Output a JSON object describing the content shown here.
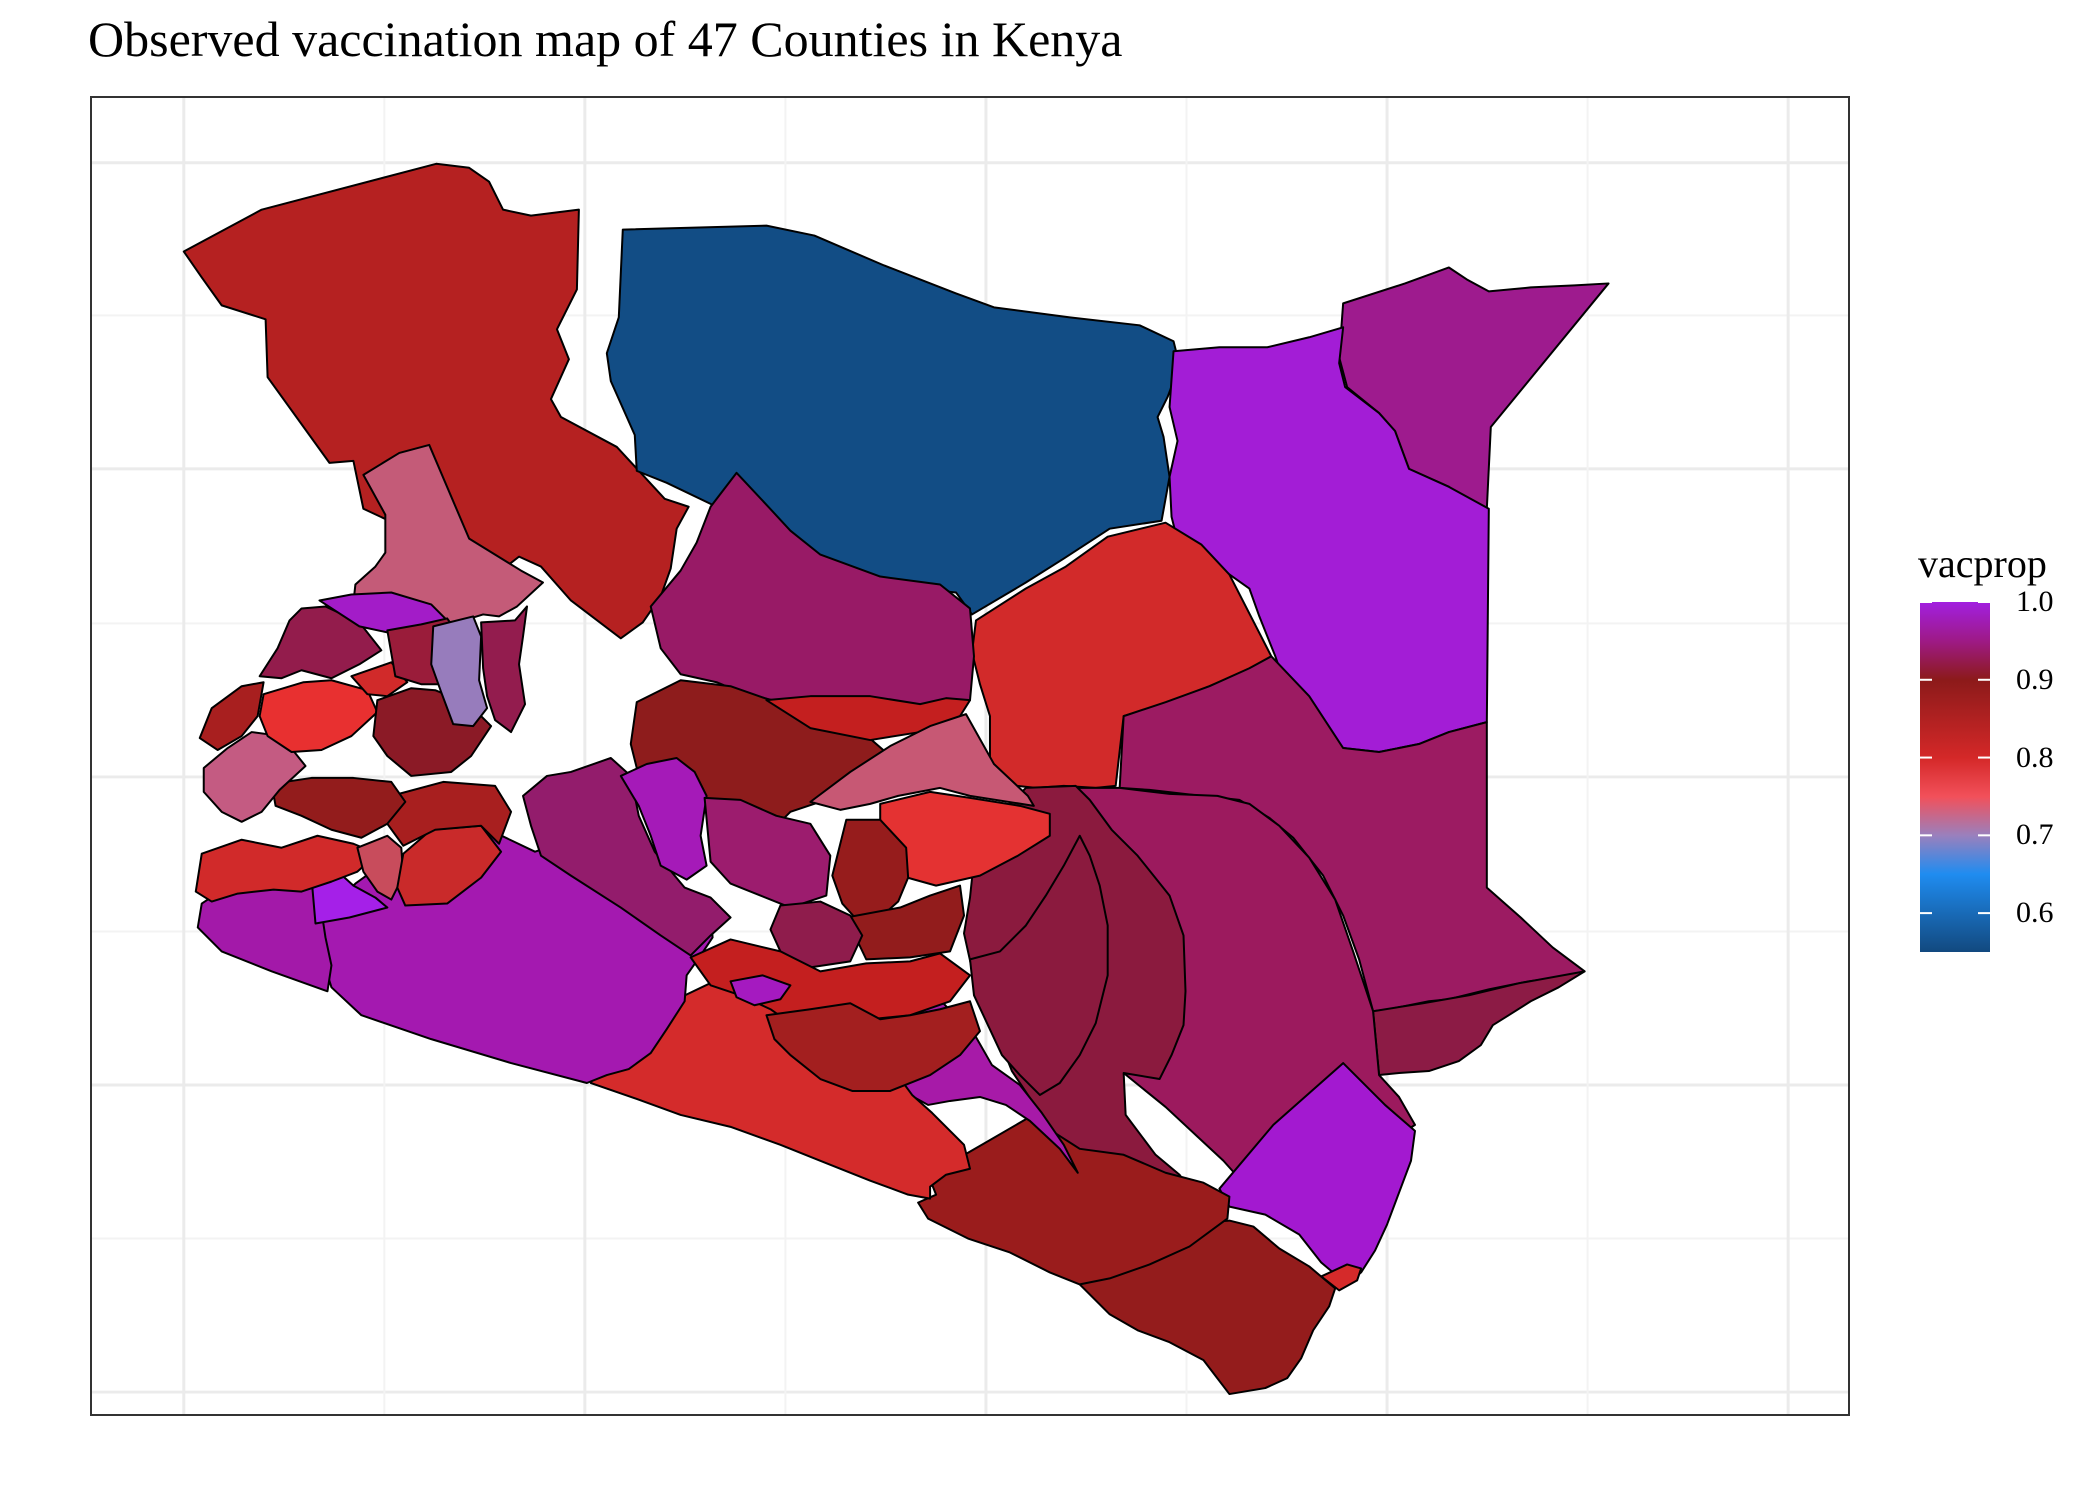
{
  "title": "Observed vaccination map of 47 Counties in Kenya",
  "legend": {
    "title": "vacprop",
    "ticks": [
      "1.0",
      "0.9",
      "0.8",
      "0.7",
      "0.6"
    ],
    "tick_values": [
      1.0,
      0.9,
      0.8,
      0.7,
      0.6
    ],
    "range": [
      0.55,
      1.0
    ],
    "color_stops": [
      {
        "value": 0.55,
        "color": "#12497f"
      },
      {
        "value": 0.65,
        "color": "#1f8cf0"
      },
      {
        "value": 0.7,
        "color": "#9a80bd"
      },
      {
        "value": 0.75,
        "color": "#f2505a"
      },
      {
        "value": 0.8,
        "color": "#d42828"
      },
      {
        "value": 0.9,
        "color": "#8c1a1a"
      },
      {
        "value": 0.95,
        "color": "#9e1a86"
      },
      {
        "value": 1.0,
        "color": "#a21fe0"
      }
    ]
  },
  "map": {
    "background": "#ffffff",
    "gridline_color": "#ebebeb",
    "border_color": "#000000",
    "region_count": 47
  }
}
